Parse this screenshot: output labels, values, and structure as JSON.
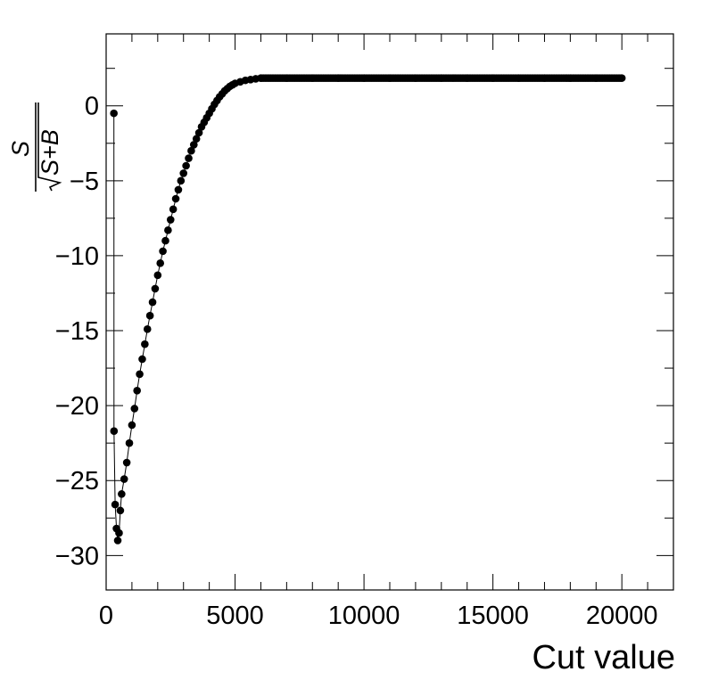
{
  "chart_data": {
    "type": "scatter",
    "xlabel": "Cut value",
    "ylabel": {
      "numerator": "S",
      "denominator": "S+B",
      "form": "S / sqrt(S+B)"
    },
    "xlim": [
      0,
      22000
    ],
    "ylim": [
      -32.3,
      4.8
    ],
    "xticks": [
      0,
      5000,
      10000,
      15000,
      20000
    ],
    "xtick_labels": [
      "0",
      "5000",
      "10000",
      "15000",
      "20000"
    ],
    "yticks": [
      -30,
      -25,
      -20,
      -15,
      -10,
      -5,
      0
    ],
    "ytick_labels": [
      "−30",
      "−25",
      "−20",
      "−15",
      "−10",
      "−5",
      "0"
    ],
    "grid": false,
    "legend": "none",
    "marker_color": "#000000",
    "connected_line": true,
    "series": [
      {
        "x": [
          300,
          305,
          350,
          400,
          450,
          500,
          550,
          600,
          700,
          800,
          900,
          1000,
          1100,
          1200,
          1300,
          1400,
          1500,
          1600,
          1700,
          1800,
          1900,
          2000,
          2100,
          2200,
          2300,
          2400,
          2500,
          2600,
          2700,
          2800,
          2900,
          3000,
          3100,
          3200,
          3300,
          3400,
          3500,
          3600,
          3700,
          3800,
          3900,
          4000,
          4100,
          4200,
          4300,
          4400,
          4500,
          4600,
          4700,
          4800,
          4900,
          5000,
          5200,
          5400,
          5600,
          5800,
          6000,
          7000,
          8000,
          9000,
          10000,
          11000,
          12000,
          13000,
          14000,
          15000,
          16000,
          17000,
          18000,
          19000,
          20000
        ],
        "y": [
          -0.5,
          -21.7,
          -26.6,
          -28.2,
          -29.0,
          -28.5,
          -27.0,
          -25.9,
          -24.9,
          -23.8,
          -22.5,
          -21.3,
          -20.2,
          -19.0,
          -17.9,
          -16.9,
          -15.9,
          -14.9,
          -14.0,
          -13.1,
          -12.2,
          -11.3,
          -10.5,
          -9.7,
          -9.0,
          -8.3,
          -7.6,
          -6.9,
          -6.2,
          -5.6,
          -5.0,
          -4.5,
          -4.0,
          -3.5,
          -3.0,
          -2.6,
          -2.2,
          -1.8,
          -1.4,
          -1.1,
          -0.8,
          -0.5,
          -0.2,
          0.1,
          0.35,
          0.6,
          0.8,
          1.0,
          1.15,
          1.3,
          1.4,
          1.5,
          1.6,
          1.7,
          1.75,
          1.8,
          1.85,
          1.85,
          1.85,
          1.85,
          1.85,
          1.85,
          1.85,
          1.85,
          1.85,
          1.85,
          1.85,
          1.85,
          1.85,
          1.85,
          1.85
        ]
      }
    ]
  }
}
